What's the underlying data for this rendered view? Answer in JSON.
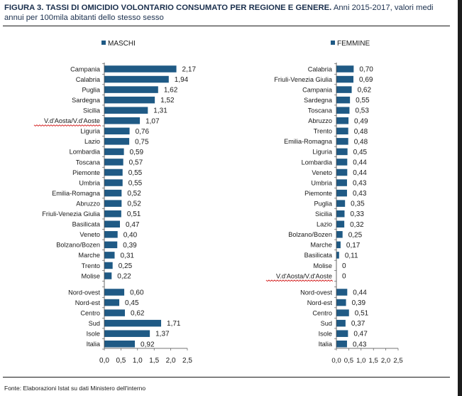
{
  "title": {
    "figure_label": "FIGURA 3. TASSI DI OMICIDIO VOLONTARIO CONSUMATO PER REGIONE E GENERE.",
    "subtitle": " Anni 2015-2017, valori medi annui per 100mila abitanti dello stesso sesso"
  },
  "source_note": "Fonte: Elaborazioni Istat su dati Ministero dell'interno",
  "colors": {
    "bar": "#1f5a85",
    "text": "#1a1a1a",
    "title": "#1a2f4d",
    "squiggle": "#d42020"
  },
  "chart_data": [
    {
      "type": "bar",
      "orientation": "horizontal",
      "legend": "MASCHI",
      "xlim": [
        0,
        2.5
      ],
      "xticks": [
        "0,0",
        "0,5",
        "1,0",
        "1,5",
        "2,0",
        "2,5"
      ],
      "regions": {
        "categories": [
          "Campania",
          "Calabria",
          "Puglia",
          "Sardegna",
          "Sicilia",
          "V.d'Aosta/V.d'Aoste",
          "Liguria",
          "Lazio",
          "Lombardia",
          "Toscana",
          "Piemonte",
          "Umbria",
          "Emilia-Romagna",
          "Abruzzo",
          "Friuli-Venezia Giulia",
          "Basilicata",
          "Veneto",
          "Bolzano/Bozen",
          "Marche",
          "Trento",
          "Molise"
        ],
        "values": [
          2.17,
          1.94,
          1.62,
          1.52,
          1.31,
          1.07,
          0.76,
          0.75,
          0.59,
          0.57,
          0.55,
          0.55,
          0.52,
          0.52,
          0.51,
          0.47,
          0.4,
          0.39,
          0.31,
          0.25,
          0.22
        ],
        "labels": [
          "2,17",
          "1,94",
          "1,62",
          "1,52",
          "1,31",
          "1,07",
          "0,76",
          "0,75",
          "0,59",
          "0,57",
          "0,55",
          "0,55",
          "0,52",
          "0,52",
          "0,51",
          "0,47",
          "0,40",
          "0,39",
          "0,31",
          "0,25",
          "0,22"
        ]
      },
      "areas": {
        "categories": [
          "Nord-ovest",
          "Nord-est",
          "Centro",
          "Sud",
          "Isole",
          "Italia"
        ],
        "values": [
          0.6,
          0.45,
          0.62,
          1.71,
          1.37,
          0.92
        ],
        "labels": [
          "0,60",
          "0,45",
          "0,62",
          "1,71",
          "1,37",
          "0,92"
        ]
      }
    },
    {
      "type": "bar",
      "orientation": "horizontal",
      "legend": "FEMMINE",
      "xlim": [
        0,
        2.5
      ],
      "xticks": [
        "0,0",
        "0,5",
        "1,0",
        "1,5",
        "2,0",
        "2,5"
      ],
      "regions": {
        "categories": [
          "Calabria",
          "Friuli-Venezia Giulia",
          "Campania",
          "Sardegna",
          "Toscana",
          "Abruzzo",
          "Trento",
          "Emilia-Romagna",
          "Liguria",
          "Lombardia",
          "Veneto",
          "Umbria",
          "Piemonte",
          "Puglia",
          "Sicilia",
          "Lazio",
          "Bolzano/Bozen",
          "Marche",
          "Basilicata",
          "Molise",
          "V.d'Aosta/V.d'Aoste"
        ],
        "values": [
          0.7,
          0.69,
          0.62,
          0.55,
          0.53,
          0.49,
          0.48,
          0.48,
          0.45,
          0.44,
          0.44,
          0.43,
          0.43,
          0.35,
          0.33,
          0.32,
          0.25,
          0.17,
          0.11,
          0,
          0
        ],
        "labels": [
          "0,70",
          "0,69",
          "0,62",
          "0,55",
          "0,53",
          "0,49",
          "0,48",
          "0,48",
          "0,45",
          "0,44",
          "0,44",
          "0,43",
          "0,43",
          "0,35",
          "0,33",
          "0,32",
          "0,25",
          "0,17",
          "0,11",
          "0",
          "0"
        ]
      },
      "areas": {
        "categories": [
          "Nord-ovest",
          "Nord-est",
          "Centro",
          "Sud",
          "Isole",
          "Italia"
        ],
        "values": [
          0.44,
          0.39,
          0.51,
          0.37,
          0.47,
          0.43
        ],
        "labels": [
          "0,44",
          "0,39",
          "0,51",
          "0,37",
          "0,47",
          "0,43"
        ]
      }
    }
  ]
}
